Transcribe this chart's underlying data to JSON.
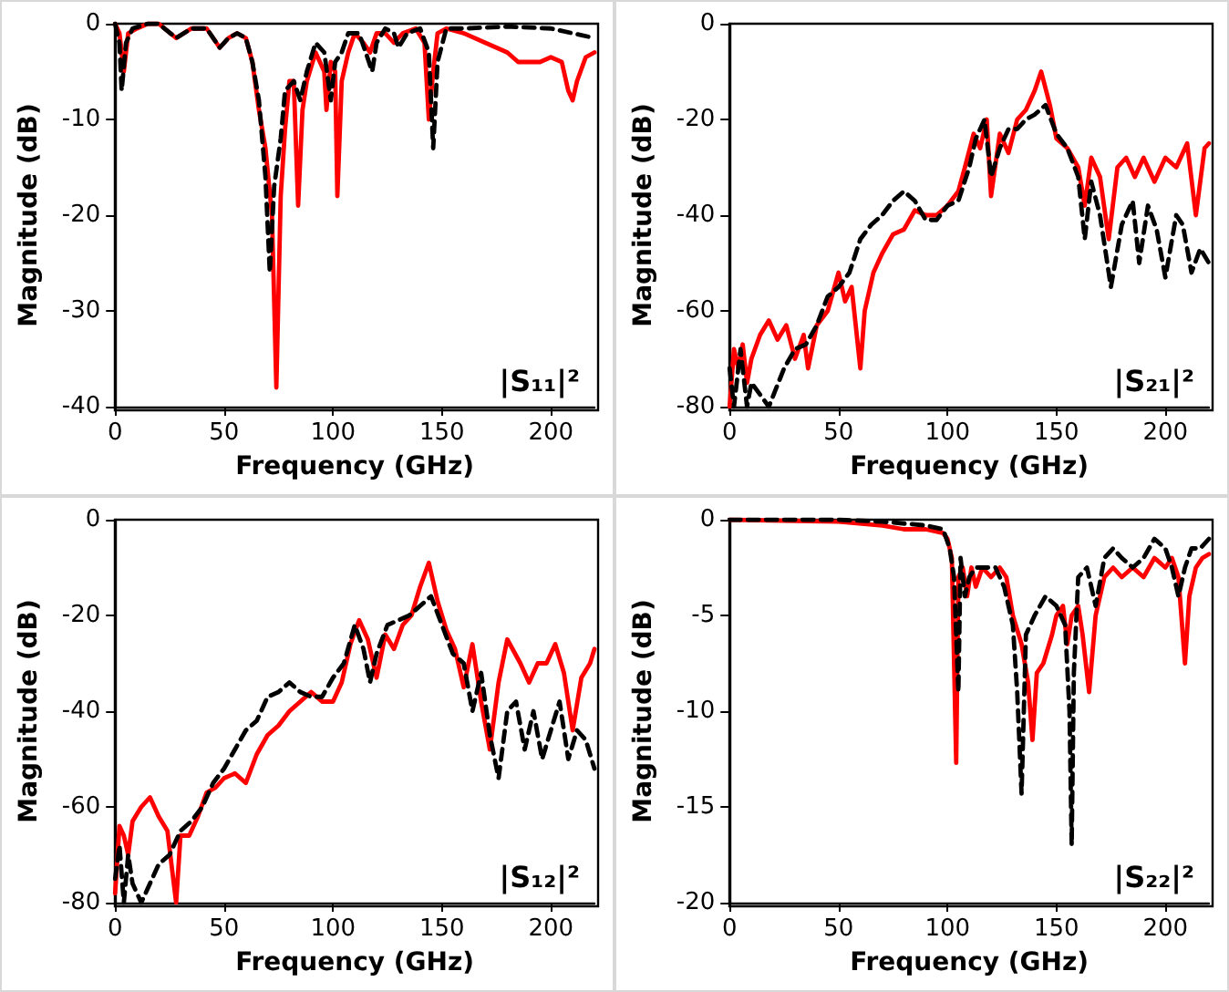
{
  "chart_data": [
    {
      "type": "line",
      "xlabel": "Frequency (GHz)",
      "ylabel": "Magnitude (dB)",
      "annotations": [
        "|S₁₁|²"
      ],
      "xlim": [
        0,
        220
      ],
      "xticks": [
        0,
        50,
        100,
        150,
        200
      ],
      "ylim": [
        -40,
        0
      ],
      "yticks": [
        -40,
        -30,
        -20,
        -10,
        0
      ],
      "series": [
        {
          "color": "#ff0000",
          "line_style": "solid",
          "x": [
            0,
            2,
            4,
            6,
            10,
            15,
            20,
            28,
            35,
            42,
            48,
            52,
            56,
            60,
            63,
            66,
            69,
            72,
            74,
            76,
            78,
            80,
            82,
            84,
            86,
            88,
            92,
            96,
            97,
            99,
            101,
            102,
            104,
            107,
            110,
            114,
            117,
            120,
            124,
            128,
            132,
            138,
            142,
            144,
            146,
            148,
            152,
            160,
            170,
            180,
            185,
            195,
            200,
            205,
            208,
            210,
            212,
            216,
            220
          ],
          "values": [
            0,
            -1,
            -5,
            -1,
            -0.5,
            0,
            0,
            -1.5,
            -0.5,
            -0.5,
            -2.5,
            -1.5,
            -1,
            -1.5,
            -4,
            -9,
            -13,
            -20,
            -38,
            -18,
            -11,
            -6,
            -6,
            -19,
            -9,
            -6,
            -3,
            -5,
            -9,
            -4,
            -5,
            -18,
            -6,
            -3,
            -1,
            -2,
            -3,
            -1,
            -1,
            -2,
            -1,
            -0.5,
            -2,
            -10,
            -5,
            -1,
            -0.5,
            -1,
            -2,
            -3,
            -4,
            -4,
            -3.5,
            -4,
            -7,
            -8,
            -6,
            -3.5,
            -3
          ]
        },
        {
          "color": "#000000",
          "line_style": "dashed",
          "x": [
            0,
            2,
            3,
            5,
            8,
            15,
            20,
            28,
            35,
            42,
            48,
            52,
            56,
            60,
            63,
            66,
            69,
            71,
            73,
            76,
            78,
            82,
            85,
            88,
            92,
            96,
            99,
            101,
            104,
            107,
            112,
            118,
            120,
            124,
            128,
            130,
            134,
            140,
            144,
            146,
            148,
            152,
            160,
            180,
            200,
            210,
            220
          ],
          "values": [
            0,
            -2,
            -7,
            -2,
            -0.5,
            0,
            0,
            -1.5,
            -0.5,
            -0.5,
            -2.5,
            -1.5,
            -1,
            -1.5,
            -4,
            -8,
            -16,
            -26,
            -17,
            -12,
            -7,
            -6,
            -8,
            -5,
            -2,
            -3,
            -8,
            -4,
            -3,
            -1,
            -1,
            -5,
            -2,
            -0.5,
            -1,
            -2.5,
            -1,
            -0.5,
            -3,
            -13,
            -4,
            -0.5,
            -0.5,
            -0.3,
            -0.5,
            -1,
            -1.5
          ]
        }
      ]
    },
    {
      "type": "line",
      "xlabel": "Frequency (GHz)",
      "ylabel": "Magnitude (dB)",
      "annotations": [
        "|S₂₁|²"
      ],
      "xlim": [
        0,
        220
      ],
      "xticks": [
        0,
        50,
        100,
        150,
        200
      ],
      "ylim": [
        -80,
        0
      ],
      "yticks": [
        -80,
        -60,
        -40,
        -20,
        0
      ],
      "series": [
        {
          "color": "#ff0000",
          "line_style": "solid",
          "x": [
            0,
            2,
            4,
            6,
            8,
            10,
            14,
            18,
            22,
            26,
            30,
            34,
            36,
            40,
            45,
            50,
            53,
            56,
            60,
            62,
            66,
            70,
            75,
            80,
            85,
            90,
            95,
            100,
            105,
            108,
            112,
            115,
            118,
            120,
            124,
            128,
            132,
            136,
            140,
            143,
            147,
            150,
            155,
            160,
            163,
            166,
            170,
            174,
            178,
            182,
            186,
            190,
            195,
            200,
            205,
            210,
            214,
            218,
            220
          ],
          "values": [
            -80,
            -68,
            -72,
            -67,
            -75,
            -70,
            -65,
            -62,
            -66,
            -63,
            -70,
            -65,
            -72,
            -63,
            -60,
            -52,
            -58,
            -55,
            -72,
            -60,
            -52,
            -48,
            -44,
            -43,
            -39,
            -40,
            -40,
            -38,
            -35,
            -30,
            -23,
            -26,
            -20,
            -36,
            -23,
            -27,
            -20,
            -18,
            -14,
            -10,
            -17,
            -24,
            -26,
            -30,
            -38,
            -28,
            -32,
            -45,
            -30,
            -28,
            -32,
            -28,
            -33,
            -28,
            -30,
            -25,
            -40,
            -26,
            -25
          ]
        },
        {
          "color": "#000000",
          "line_style": "dashed",
          "x": [
            0,
            2,
            5,
            8,
            10,
            18,
            25,
            30,
            35,
            40,
            45,
            50,
            55,
            60,
            65,
            70,
            75,
            80,
            85,
            90,
            95,
            100,
            105,
            110,
            113,
            117,
            120,
            124,
            128,
            132,
            136,
            140,
            145,
            150,
            155,
            160,
            163,
            166,
            170,
            175,
            180,
            185,
            188,
            192,
            196,
            200,
            205,
            208,
            212,
            216,
            220
          ],
          "values": [
            -72,
            -80,
            -68,
            -80,
            -75,
            -80,
            -72,
            -68,
            -67,
            -63,
            -57,
            -55,
            -52,
            -45,
            -42,
            -40,
            -37,
            -35,
            -37,
            -41,
            -41,
            -38,
            -37,
            -30,
            -24,
            -20,
            -32,
            -26,
            -22,
            -22,
            -20,
            -19,
            -17,
            -23,
            -26,
            -32,
            -45,
            -33,
            -40,
            -55,
            -42,
            -37,
            -50,
            -38,
            -43,
            -53,
            -40,
            -42,
            -52,
            -47,
            -50
          ]
        }
      ]
    },
    {
      "type": "line",
      "xlabel": "Frequency (GHz)",
      "ylabel": "Magnitude (dB)",
      "annotations": [
        "|S₁₂|²"
      ],
      "xlim": [
        0,
        220
      ],
      "xticks": [
        0,
        50,
        100,
        150,
        200
      ],
      "ylim": [
        -80,
        0
      ],
      "yticks": [
        -80,
        -60,
        -40,
        -20,
        0
      ],
      "series": [
        {
          "color": "#ff0000",
          "line_style": "solid",
          "x": [
            0,
            2,
            4,
            6,
            8,
            12,
            16,
            20,
            24,
            28,
            30,
            34,
            38,
            42,
            46,
            50,
            55,
            60,
            65,
            70,
            75,
            80,
            85,
            90,
            95,
            100,
            104,
            108,
            112,
            116,
            120,
            124,
            128,
            132,
            136,
            140,
            144,
            148,
            152,
            156,
            160,
            164,
            168,
            172,
            176,
            180,
            186,
            190,
            194,
            198,
            202,
            206,
            210,
            214,
            218,
            220
          ],
          "values": [
            -78,
            -64,
            -66,
            -70,
            -63,
            -60,
            -58,
            -62,
            -65,
            -80,
            -66,
            -66,
            -62,
            -57,
            -56,
            -54,
            -53,
            -55,
            -49,
            -45,
            -43,
            -40,
            -38,
            -36,
            -38,
            -38,
            -34,
            -26,
            -21,
            -25,
            -33,
            -24,
            -27,
            -22,
            -20,
            -14,
            -9,
            -17,
            -23,
            -27,
            -35,
            -26,
            -38,
            -48,
            -34,
            -25,
            -30,
            -34,
            -30,
            -30,
            -26,
            -32,
            -44,
            -33,
            -30,
            -27
          ]
        },
        {
          "color": "#000000",
          "line_style": "dashed",
          "x": [
            0,
            2,
            4,
            6,
            8,
            12,
            16,
            20,
            25,
            30,
            35,
            40,
            45,
            50,
            55,
            60,
            65,
            70,
            75,
            80,
            85,
            90,
            95,
            100,
            105,
            110,
            114,
            117,
            120,
            125,
            130,
            135,
            140,
            145,
            150,
            155,
            160,
            164,
            168,
            172,
            176,
            180,
            184,
            188,
            192,
            196,
            200,
            204,
            208,
            212,
            216,
            220
          ],
          "values": [
            -75,
            -68,
            -80,
            -70,
            -76,
            -80,
            -76,
            -72,
            -70,
            -65,
            -63,
            -60,
            -55,
            -52,
            -48,
            -44,
            -42,
            -37,
            -36,
            -34,
            -36,
            -37,
            -37,
            -33,
            -30,
            -22,
            -27,
            -34,
            -28,
            -22,
            -21,
            -20,
            -18,
            -16,
            -22,
            -28,
            -30,
            -40,
            -32,
            -45,
            -54,
            -40,
            -38,
            -48,
            -40,
            -50,
            -44,
            -38,
            -50,
            -44,
            -46,
            -52
          ]
        }
      ]
    },
    {
      "type": "line",
      "xlabel": "Frequency (GHz)",
      "ylabel": "Magnitude (dB)",
      "annotations": [
        "|S₂₂|²"
      ],
      "xlim": [
        0,
        220
      ],
      "xticks": [
        0,
        50,
        100,
        150,
        200
      ],
      "ylim": [
        -20,
        0
      ],
      "yticks": [
        -20,
        -15,
        -10,
        -5,
        0
      ],
      "series": [
        {
          "color": "#ff0000",
          "line_style": "solid",
          "x": [
            0,
            50,
            70,
            80,
            90,
            98,
            100,
            102,
            104,
            105,
            107,
            109,
            111,
            113,
            116,
            120,
            124,
            127,
            130,
            134,
            137,
            139,
            141,
            144,
            148,
            150,
            153,
            155,
            157,
            160,
            162,
            165,
            168,
            172,
            176,
            180,
            185,
            190,
            195,
            200,
            203,
            206,
            209,
            211,
            214,
            217,
            220
          ],
          "values": [
            0,
            -0.1,
            -0.3,
            -0.5,
            -0.5,
            -0.7,
            -1,
            -2,
            -12.7,
            -3,
            -2.5,
            -4,
            -2.5,
            -3.5,
            -2.5,
            -3,
            -2.5,
            -3,
            -5,
            -6.5,
            -8.5,
            -11.5,
            -8,
            -7.5,
            -6,
            -5,
            -4.5,
            -6.5,
            -5,
            -4.5,
            -6,
            -9,
            -5,
            -3,
            -2.5,
            -3,
            -2.5,
            -3,
            -2,
            -2.5,
            -2,
            -3,
            -7.5,
            -4,
            -2.5,
            -2,
            -1.8
          ]
        },
        {
          "color": "#000000",
          "line_style": "dashed",
          "x": [
            0,
            50,
            70,
            90,
            98,
            101,
            103,
            105,
            106,
            108,
            110,
            113,
            118,
            122,
            126,
            130,
            132,
            134,
            136,
            140,
            145,
            150,
            154,
            156,
            157,
            158,
            160,
            164,
            168,
            172,
            176,
            180,
            185,
            190,
            195,
            200,
            203,
            206,
            209,
            212,
            216,
            220
          ],
          "values": [
            0,
            0,
            -0.1,
            -0.3,
            -0.5,
            -1.5,
            -3,
            -9,
            -2,
            -4,
            -3,
            -2.5,
            -2.5,
            -2.5,
            -3.5,
            -5.5,
            -9,
            -14.3,
            -6,
            -5,
            -4,
            -4.5,
            -5.5,
            -10,
            -17,
            -8,
            -3,
            -2.5,
            -4.5,
            -2,
            -1.5,
            -2,
            -2.5,
            -2,
            -1,
            -1.5,
            -2.5,
            -4,
            -2.5,
            -1.5,
            -1.5,
            -1
          ]
        }
      ]
    }
  ]
}
